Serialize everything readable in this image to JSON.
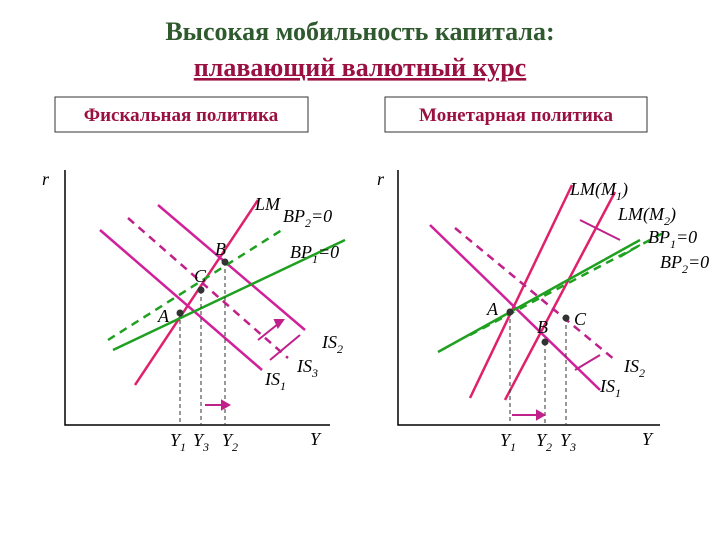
{
  "header": {
    "title_line1": "Высокая мобильность капитала:",
    "title_line2": "плавающий валютный курс"
  },
  "left": {
    "button": "Фискальная политика",
    "axis_y": "r",
    "axis_x": "Y",
    "labels": {
      "lm": "LM",
      "bp2": [
        "BP",
        "2",
        "=0"
      ],
      "bp1": [
        "BP",
        "1",
        "=0"
      ],
      "b": "B",
      "c": "C",
      "a": "A",
      "is2": [
        "IS",
        "2"
      ],
      "is3": [
        "IS",
        "3"
      ],
      "is1": [
        "IS",
        "1"
      ],
      "x_y1": [
        "Y",
        "1"
      ],
      "x_y3": [
        "Y",
        "3"
      ],
      "x_y2": [
        "Y",
        "2"
      ]
    }
  },
  "right": {
    "button": "Монетарная политика",
    "axis_y": "r",
    "axis_x": "Y",
    "labels": {
      "lm1": [
        "LM(M",
        "1",
        ")"
      ],
      "lm2": [
        "LM(M",
        "2",
        ")"
      ],
      "bp1": [
        "BP",
        "1",
        "=0"
      ],
      "bp2": [
        "BP",
        "2",
        "=0"
      ],
      "a": "A",
      "b": "B",
      "c": "C",
      "is2": [
        "IS",
        "2"
      ],
      "is1": [
        "IS",
        "1"
      ],
      "x_y1": [
        "Y",
        "1"
      ],
      "x_y2": [
        "Y",
        "2"
      ],
      "x_y3": [
        "Y",
        "3"
      ]
    }
  }
}
